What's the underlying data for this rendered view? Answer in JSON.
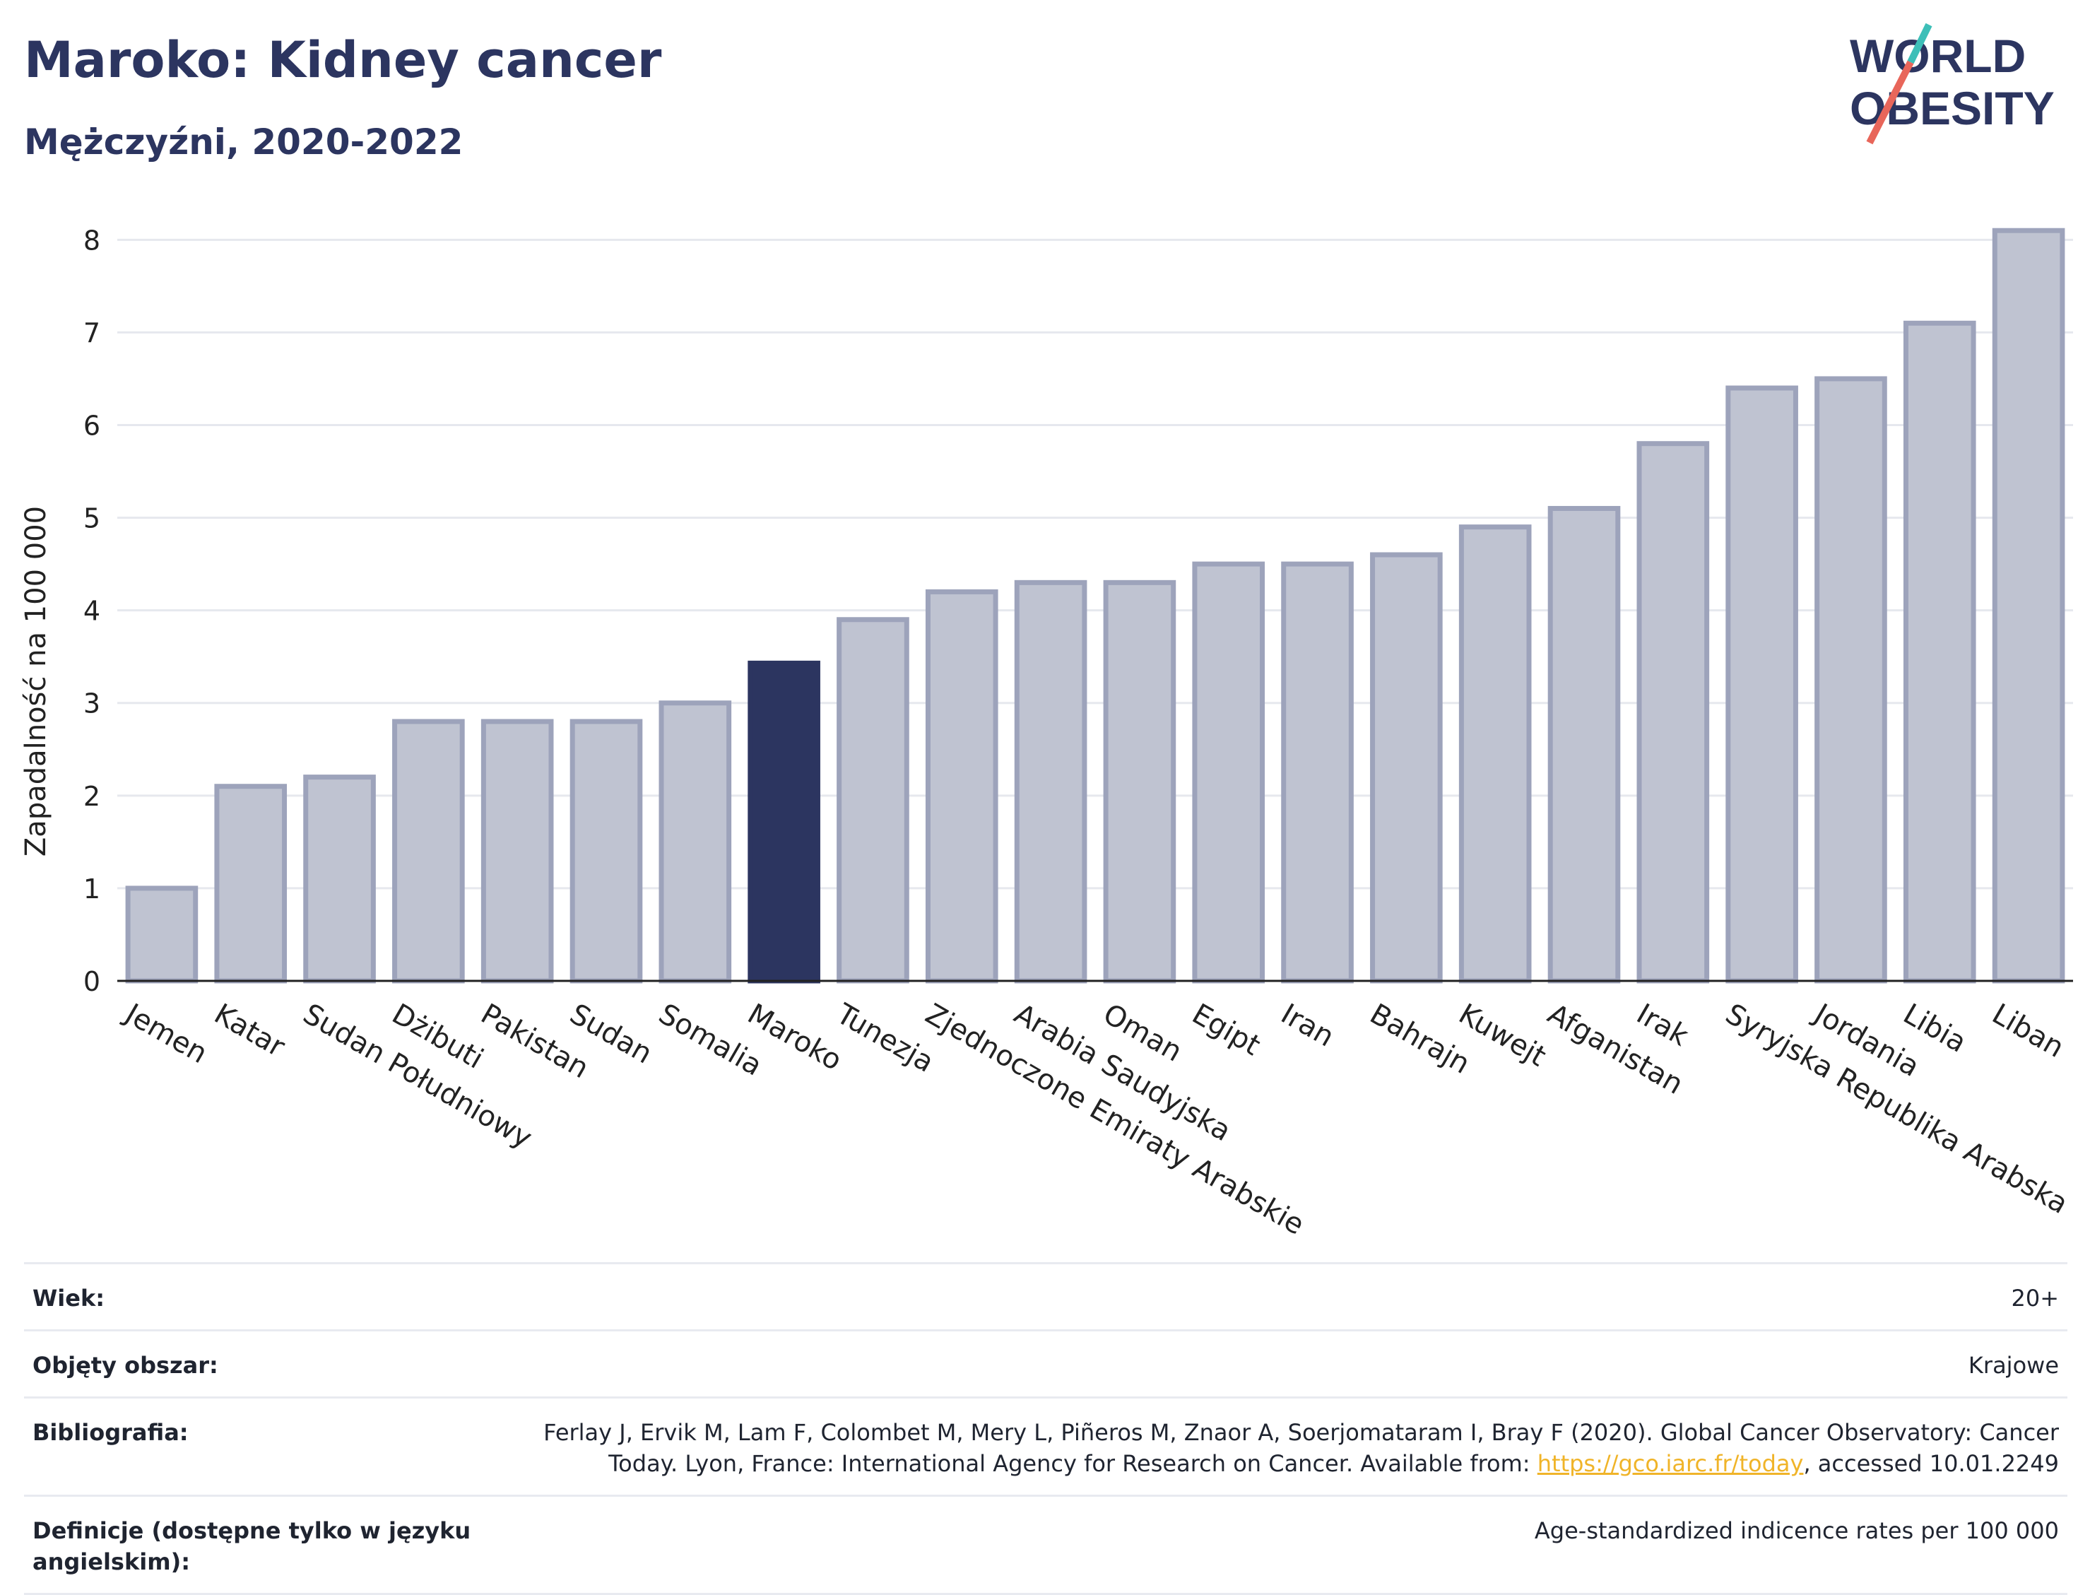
{
  "header": {
    "title": "Maroko: Kidney cancer",
    "subtitle": "Mężczyźni, 2020-2022"
  },
  "logo": {
    "line1": "WORLD",
    "line2": "OBESITY",
    "colors": {
      "text": "#2c3560",
      "slash_top": "#3dbfb8",
      "slash_bottom": "#e8665a"
    }
  },
  "chart_data": {
    "type": "bar",
    "categories": [
      "Jemen",
      "Katar",
      "Sudan Południowy",
      "Dżibuti",
      "Pakistan",
      "Sudan",
      "Somalia",
      "Maroko",
      "Tunezja",
      "Zjednoczone Emiraty Arabskie",
      "Arabia Saudyjska",
      "Oman",
      "Egipt",
      "Iran",
      "Bahrajn",
      "Kuwejt",
      "Afganistan",
      "Irak",
      "Syryjska Republika Arabska",
      "Jordania",
      "Libia",
      "Liban"
    ],
    "values": [
      1.0,
      2.1,
      2.2,
      2.8,
      2.8,
      2.8,
      3.0,
      3.43,
      3.9,
      4.2,
      4.3,
      4.3,
      4.5,
      4.5,
      4.6,
      4.9,
      5.1,
      5.8,
      6.4,
      6.5,
      7.1,
      8.1
    ],
    "highlight": "Maroko",
    "ylabel": "Zapadalność na 100 000",
    "xlabel": "",
    "ylim": [
      0,
      8.3
    ],
    "yticks": [
      0,
      1,
      2,
      3,
      4,
      5,
      6,
      7,
      8
    ],
    "grid": true,
    "colors": {
      "bar": "#bfc3d1",
      "bar_edge": "#9da3bb",
      "highlight": "#2c3560"
    }
  },
  "meta": {
    "rows": [
      {
        "label": "Wiek:",
        "value": "20+"
      },
      {
        "label": "Objęty obszar:",
        "value": "Krajowe"
      },
      {
        "label": "Bibliografia:",
        "value_pre": "Ferlay J, Ervik M, Lam F, Colombet M, Mery L, Piñeros M, Znaor A, Soerjomataram I, Bray F (2020). Global Cancer Observatory: Cancer Today. Lyon, France: International Agency for Research on Cancer. Available from: ",
        "link": "https://gco.iarc.fr/today",
        "value_post": ", accessed 10.01.2249"
      },
      {
        "label": "Definicje (dostępne tylko w języku angielskim):",
        "value": "Age-standardized indicence rates per 100 000"
      }
    ]
  }
}
